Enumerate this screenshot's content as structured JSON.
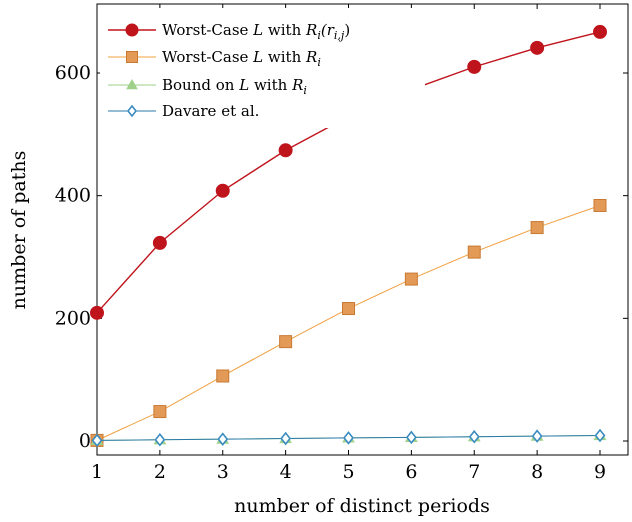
{
  "chart_data": {
    "type": "line",
    "xlabel": "number of distinct periods",
    "ylabel": "number of paths",
    "x": [
      1,
      2,
      3,
      4,
      5,
      6,
      7,
      8,
      9
    ],
    "xlim": [
      1,
      9
    ],
    "ylim": [
      -20,
      700
    ],
    "xticks": [
      1,
      2,
      3,
      4,
      5,
      6,
      7,
      8,
      9
    ],
    "yticks": [
      0,
      200,
      400,
      600
    ],
    "grid": false,
    "legend_position": "top-left",
    "series": [
      {
        "name": "Worst-Case L with R_i(r_{i,j})",
        "legend": {
          "pre": "Worst-Case ",
          "var": "L",
          "mid": " with ",
          "math": "R",
          "sub": "i",
          "post": "(r",
          "post_sub": "i,j",
          "post_end": ")"
        },
        "color": "#c0141c",
        "marker": "circle",
        "values": [
          209,
          323,
          408,
          474,
          529,
          573,
          610,
          641,
          667
        ]
      },
      {
        "name": "Worst-Case L with R_i",
        "legend": {
          "pre": "Worst-Case ",
          "var": "L",
          "mid": " with ",
          "math": "R",
          "sub": "i"
        },
        "color": "#f0a040",
        "marker_fill": "#e39a56",
        "marker": "square",
        "values": [
          1,
          48,
          106,
          162,
          216,
          264,
          308,
          348,
          384
        ]
      },
      {
        "name": "Bound on L with R_i",
        "legend": {
          "pre": "Bound on ",
          "var": "L",
          "mid": " with ",
          "math": "R",
          "sub": "i"
        },
        "color": "#9fd18a",
        "marker": "triangle",
        "values": [
          1,
          2,
          3,
          4,
          5,
          6,
          7,
          8,
          9
        ]
      },
      {
        "name": "Davare et al.",
        "legend": {
          "pre": "Davare et al."
        },
        "color": "#2a7aa8",
        "marker_fill": "#3a8cc0",
        "marker": "diamond",
        "values": [
          1,
          2,
          3,
          4,
          5,
          6,
          7,
          8,
          9
        ]
      }
    ]
  }
}
